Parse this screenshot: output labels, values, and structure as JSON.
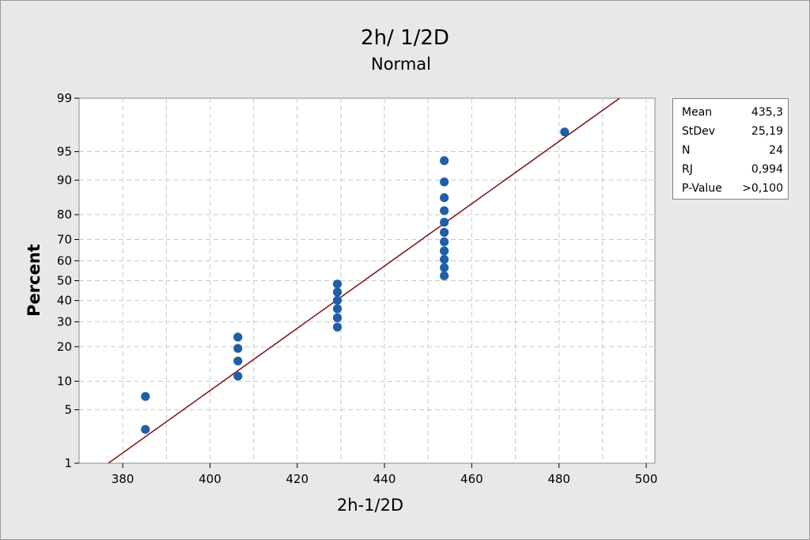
{
  "chart_data": {
    "type": "scatter",
    "title": "2h/ 1/2D",
    "subtitle": "Normal",
    "xlabel": "2h-1/2D",
    "ylabel": "Percent",
    "xlim": [
      370,
      502
    ],
    "ylim": [
      1,
      99
    ],
    "y_scale": "normal-probability",
    "x_ticks": [
      380,
      400,
      420,
      440,
      460,
      480,
      500
    ],
    "y_ticks": [
      1,
      5,
      10,
      20,
      30,
      40,
      50,
      60,
      70,
      80,
      90,
      95,
      99
    ],
    "grid": true,
    "points": [
      {
        "x": 385.2,
        "y": 2.9
      },
      {
        "x": 385.2,
        "y": 7.0
      },
      {
        "x": 406.4,
        "y": 11.2
      },
      {
        "x": 406.4,
        "y": 15.3
      },
      {
        "x": 406.4,
        "y": 19.4
      },
      {
        "x": 406.4,
        "y": 23.6
      },
      {
        "x": 429.2,
        "y": 27.7
      },
      {
        "x": 429.2,
        "y": 31.8
      },
      {
        "x": 429.2,
        "y": 36.0
      },
      {
        "x": 429.2,
        "y": 40.1
      },
      {
        "x": 429.2,
        "y": 44.2
      },
      {
        "x": 429.2,
        "y": 48.3
      },
      {
        "x": 453.7,
        "y": 52.5
      },
      {
        "x": 453.7,
        "y": 56.6
      },
      {
        "x": 453.7,
        "y": 60.7
      },
      {
        "x": 453.7,
        "y": 64.8
      },
      {
        "x": 453.7,
        "y": 69.0
      },
      {
        "x": 453.7,
        "y": 73.1
      },
      {
        "x": 453.7,
        "y": 77.2
      },
      {
        "x": 453.7,
        "y": 81.4
      },
      {
        "x": 453.7,
        "y": 85.5
      },
      {
        "x": 453.7,
        "y": 89.6
      },
      {
        "x": 453.7,
        "y": 93.7
      },
      {
        "x": 481.3,
        "y": 97.1
      }
    ],
    "fit_line": {
      "mean": 435.3,
      "stdev": 25.19
    },
    "legend_position": "right",
    "colors": {
      "points": "#1f5fa8",
      "fit_line": "#8b1a1a",
      "plot_background": "#ffffff",
      "grid": "#c8c8c8",
      "page_background": "#e8e8e8"
    },
    "stats": [
      {
        "label": "Mean",
        "value": "435,3"
      },
      {
        "label": "StDev",
        "value": "25,19"
      },
      {
        "label": "N",
        "value": "24"
      },
      {
        "label": "RJ",
        "value": "0,994"
      },
      {
        "label": "P-Value",
        "value": ">0,100"
      }
    ]
  }
}
